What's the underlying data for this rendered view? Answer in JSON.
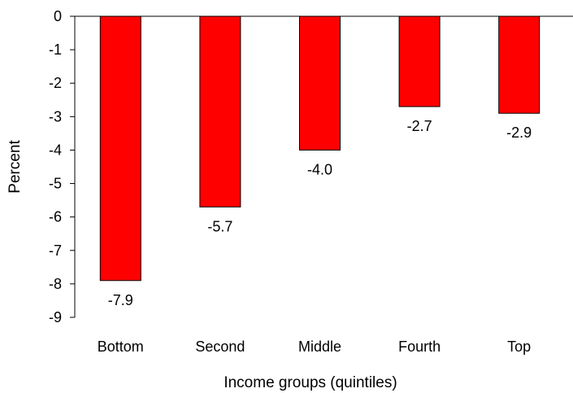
{
  "chart_data": {
    "type": "bar",
    "title": "",
    "xlabel": "Income groups (quintiles)",
    "ylabel": "Percent",
    "categories": [
      "Bottom",
      "Second",
      "Middle",
      "Fourth",
      "Top"
    ],
    "values": [
      -7.9,
      -5.7,
      -4.0,
      -2.7,
      -2.9
    ],
    "data_labels": [
      "-7.9",
      "-5.7",
      "-4.0",
      "-2.7",
      "-2.9"
    ],
    "ylim": [
      -9,
      0
    ],
    "yticks": [
      0,
      -1,
      -2,
      -3,
      -4,
      -5,
      -6,
      -7,
      -8,
      -9
    ],
    "grid": false,
    "legend": "none",
    "bar_color": "#ff0000",
    "bar_edge_color": "#000000"
  }
}
